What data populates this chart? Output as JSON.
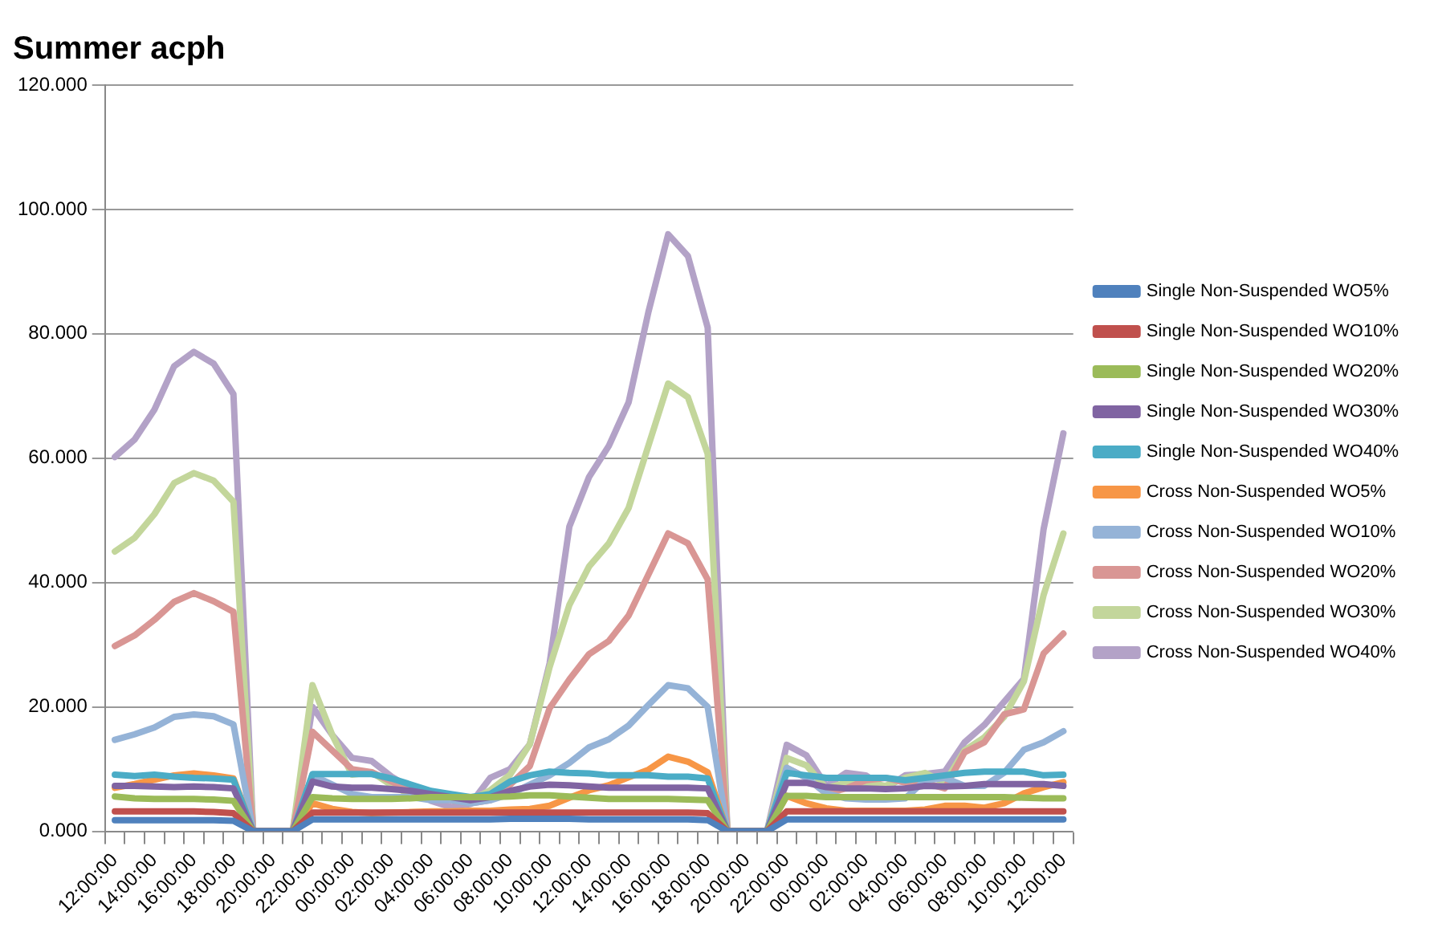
{
  "chart_data": {
    "type": "line",
    "title": "Summer acph",
    "categories": [
      "12:00:00",
      null,
      "14:00:00",
      null,
      "16:00:00",
      null,
      "18:00:00",
      null,
      "20:00:00",
      null,
      "22:00:00",
      null,
      "00:00:00",
      null,
      "02:00:00",
      null,
      "04:00:00",
      null,
      "06:00:00",
      null,
      "08:00:00",
      null,
      "10:00:00",
      null,
      "12:00:00",
      null,
      "14:00:00",
      null,
      "16:00:00",
      null,
      "18:00:00",
      null,
      "20:00:00",
      null,
      "22:00:00",
      null,
      "00:00:00",
      null,
      "02:00:00",
      null,
      "04:00:00",
      null,
      "06:00:00",
      null,
      "08:00:00",
      null,
      "10:00:00",
      null,
      "12:00:00"
    ],
    "series": [
      {
        "name": "Single Non-Suspended WO5%",
        "color": "#4f81bd",
        "values": [
          1.8,
          1.8,
          1.8,
          1.8,
          1.8,
          1.8,
          1.7,
          0,
          0,
          0,
          1.9,
          1.9,
          1.9,
          1.9,
          1.9,
          1.9,
          1.9,
          1.9,
          1.9,
          1.9,
          2.0,
          2.0,
          2.0,
          2.0,
          1.9,
          1.9,
          1.9,
          1.9,
          1.9,
          1.9,
          1.8,
          0,
          0,
          0,
          1.9,
          1.9,
          1.9,
          1.9,
          1.9,
          1.9,
          1.9,
          1.9,
          1.9,
          1.9,
          1.9,
          1.9,
          1.9,
          1.9,
          1.9
        ]
      },
      {
        "name": "Single Non-Suspended WO10%",
        "color": "#c0504d",
        "values": [
          3.2,
          3.2,
          3.2,
          3.2,
          3.2,
          3.1,
          2.9,
          0,
          0,
          0,
          3.0,
          3.0,
          3.0,
          3.0,
          3.0,
          3.0,
          3.0,
          3.0,
          3.0,
          3.0,
          3.0,
          3.0,
          3.0,
          3.0,
          3.0,
          3.0,
          3.0,
          3.0,
          3.0,
          3.0,
          2.9,
          0,
          0,
          0,
          3.2,
          3.2,
          3.2,
          3.2,
          3.2,
          3.2,
          3.2,
          3.2,
          3.2,
          3.2,
          3.2,
          3.2,
          3.2,
          3.2,
          3.2
        ]
      },
      {
        "name": "Single Non-Suspended WO20%",
        "color": "#9bbb59",
        "values": [
          5.6,
          5.3,
          5.2,
          5.2,
          5.2,
          5.1,
          4.9,
          0,
          0,
          0,
          5.5,
          5.3,
          5.2,
          5.2,
          5.2,
          5.3,
          5.5,
          5.5,
          5.5,
          5.5,
          5.6,
          5.8,
          5.8,
          5.6,
          5.4,
          5.2,
          5.2,
          5.2,
          5.2,
          5.1,
          5.0,
          0,
          0,
          0,
          5.7,
          5.7,
          5.5,
          5.5,
          5.5,
          5.5,
          5.5,
          5.5,
          5.5,
          5.5,
          5.5,
          5.5,
          5.4,
          5.3,
          5.3
        ]
      },
      {
        "name": "Single Non-Suspended WO30%",
        "color": "#8064a2",
        "values": [
          7.3,
          7.3,
          7.2,
          7.1,
          7.2,
          7.1,
          6.9,
          0,
          0,
          0,
          8.0,
          7.2,
          7.0,
          7.0,
          6.8,
          6.5,
          6.0,
          5.5,
          5.0,
          5.5,
          6.5,
          7.2,
          7.5,
          7.4,
          7.2,
          7.0,
          7.0,
          7.0,
          7.0,
          7.0,
          6.9,
          0,
          0,
          0,
          7.8,
          7.8,
          7.1,
          6.9,
          6.9,
          6.8,
          6.9,
          7.3,
          7.2,
          7.3,
          7.6,
          7.6,
          7.6,
          7.6,
          7.3
        ]
      },
      {
        "name": "Single Non-Suspended WO40%",
        "color": "#4bacc6",
        "values": [
          9.1,
          8.9,
          9.1,
          8.8,
          8.6,
          8.5,
          8.3,
          0,
          0,
          0,
          9.2,
          9.2,
          9.2,
          9.2,
          8.5,
          7.5,
          6.5,
          6.0,
          5.5,
          6.0,
          8.0,
          9.0,
          9.6,
          9.4,
          9.3,
          9.0,
          9.0,
          9.0,
          8.8,
          8.8,
          8.5,
          0,
          0,
          0,
          9.4,
          9.0,
          8.6,
          8.6,
          8.6,
          8.6,
          8.2,
          8.6,
          9.0,
          9.4,
          9.6,
          9.6,
          9.6,
          9.0,
          9.1
        ]
      },
      {
        "name": "Cross Non-Suspended WO5%",
        "color": "#f79646",
        "values": [
          7.0,
          7.6,
          8.3,
          9.0,
          9.3,
          9.0,
          8.5,
          0,
          0,
          0,
          4.5,
          3.6,
          3.1,
          2.9,
          3.0,
          3.1,
          3.2,
          3.2,
          3.3,
          3.3,
          3.5,
          3.6,
          4.1,
          5.4,
          6.6,
          7.4,
          8.7,
          9.9,
          12.0,
          11.2,
          9.5,
          0,
          0,
          0,
          5.7,
          4.5,
          3.7,
          3.3,
          3.3,
          3.3,
          3.3,
          3.5,
          4.1,
          4.1,
          3.8,
          4.5,
          6.1,
          7.1,
          7.9
        ]
      },
      {
        "name": "Cross Non-Suspended WO10%",
        "color": "#95b3d7",
        "values": [
          14.7,
          15.6,
          16.7,
          18.4,
          18.8,
          18.5,
          17.2,
          0,
          0,
          0,
          9.0,
          7.5,
          6.0,
          5.5,
          5.5,
          5.5,
          5.0,
          5.0,
          4.5,
          5.0,
          6.0,
          7.5,
          9.0,
          11.0,
          13.5,
          14.8,
          17.0,
          20.3,
          23.5,
          23.0,
          20.0,
          0,
          0,
          0,
          10.2,
          8.6,
          6.1,
          5.3,
          5.1,
          5.1,
          5.3,
          8.2,
          8.6,
          7.3,
          7.3,
          9.4,
          13.1,
          14.3,
          16.1
        ]
      },
      {
        "name": "Cross Non-Suspended WO20%",
        "color": "#d99694",
        "values": [
          29.8,
          31.5,
          34.0,
          36.9,
          38.3,
          37.0,
          35.3,
          0,
          0,
          0,
          16.0,
          13.0,
          10.0,
          9.5,
          8.0,
          6.5,
          5.5,
          5.0,
          4.5,
          5.0,
          7.5,
          10.5,
          19.8,
          24.4,
          28.5,
          30.6,
          34.7,
          41.3,
          47.9,
          46.3,
          40.5,
          0,
          0,
          0,
          10.2,
          8.6,
          6.1,
          6.9,
          8.2,
          8.6,
          7.8,
          7.8,
          6.9,
          12.7,
          14.3,
          18.8,
          19.6,
          28.6,
          31.8
        ]
      },
      {
        "name": "Cross Non-Suspended WO30%",
        "color": "#c3d69b",
        "values": [
          45.0,
          47.2,
          51.0,
          56.0,
          57.6,
          56.4,
          53.0,
          0,
          0,
          0,
          23.5,
          15.5,
          9.1,
          9.5,
          7.4,
          5.8,
          5.4,
          5.4,
          5.0,
          6.6,
          9.1,
          14.0,
          26.4,
          36.4,
          42.6,
          46.3,
          52.0,
          62.0,
          72.0,
          69.8,
          60.7,
          0,
          0,
          0,
          11.8,
          10.6,
          6.9,
          7.8,
          7.8,
          7.3,
          8.6,
          9.4,
          7.8,
          13.0,
          15.1,
          18.4,
          24.1,
          38.0,
          47.9
        ]
      },
      {
        "name": "Cross Non-Suspended WO40%",
        "color": "#b3a2c7",
        "values": [
          60.2,
          63.0,
          67.8,
          74.8,
          77.1,
          75.2,
          70.3,
          0,
          0,
          0,
          20.0,
          15.5,
          11.8,
          11.3,
          8.8,
          6.9,
          4.9,
          3.9,
          4.4,
          8.6,
          10.0,
          14.0,
          27.0,
          49.0,
          57.0,
          62.0,
          69.0,
          83.5,
          96.0,
          92.5,
          81.0,
          0,
          0,
          0,
          13.9,
          12.2,
          7.3,
          9.4,
          9.0,
          6.9,
          9.0,
          9.2,
          9.6,
          14.3,
          17.1,
          20.8,
          24.5,
          48.6,
          64.0
        ]
      }
    ],
    "ylim": [
      0,
      120
    ],
    "yticks": [
      {
        "value": 0,
        "label": "0.000"
      },
      {
        "value": 20,
        "label": "20.000"
      },
      {
        "value": 40,
        "label": "40.000"
      },
      {
        "value": 60,
        "label": "60.000"
      },
      {
        "value": 80,
        "label": "80.000"
      },
      {
        "value": 100,
        "label": "100.000"
      },
      {
        "value": 120,
        "label": "120.000"
      }
    ],
    "grid": "y",
    "legend": "right",
    "marker": "none",
    "line_style": "solid"
  }
}
